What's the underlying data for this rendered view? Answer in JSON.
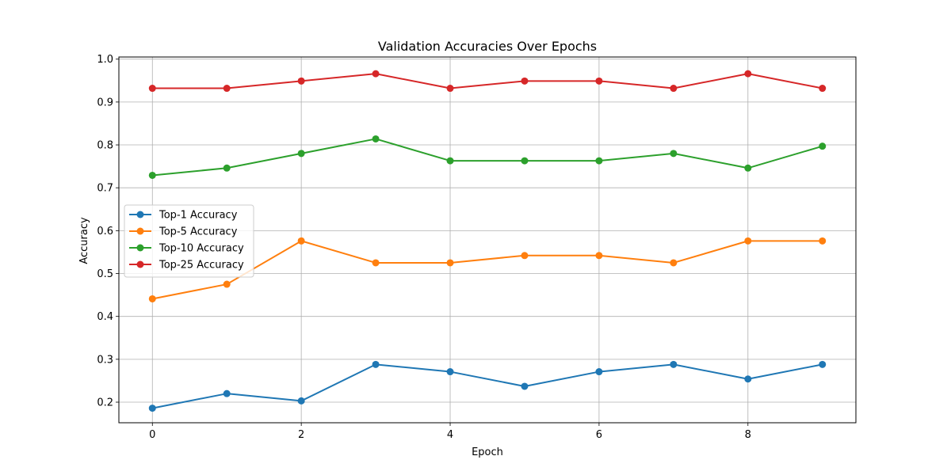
{
  "chart_data": {
    "type": "line",
    "title": "Validation Accuracies Over Epochs",
    "xlabel": "Epoch",
    "ylabel": "Accuracy",
    "x": [
      0,
      1,
      2,
      3,
      4,
      5,
      6,
      7,
      8,
      9
    ],
    "xlim": [
      -0.45,
      9.45
    ],
    "ylim": [
      0.152,
      1.005
    ],
    "xticks": [
      0,
      2,
      4,
      6,
      8
    ],
    "yticks": [
      0.2,
      0.3,
      0.4,
      0.5,
      0.6,
      0.7,
      0.8,
      0.9,
      1.0
    ],
    "xtick_labels": [
      "0",
      "2",
      "4",
      "6",
      "8"
    ],
    "ytick_labels": [
      "0.2",
      "0.3",
      "0.4",
      "0.5",
      "0.6",
      "0.7",
      "0.8",
      "0.9",
      "1.0"
    ],
    "grid": true,
    "legend_position": "center-left",
    "series": [
      {
        "name": "Top-1 Accuracy",
        "color": "#1f77b4",
        "values": [
          0.186,
          0.22,
          0.203,
          0.288,
          0.271,
          0.237,
          0.271,
          0.288,
          0.254,
          0.288
        ]
      },
      {
        "name": "Top-5 Accuracy",
        "color": "#ff7f0e",
        "values": [
          0.441,
          0.475,
          0.576,
          0.525,
          0.525,
          0.542,
          0.542,
          0.525,
          0.576,
          0.576
        ]
      },
      {
        "name": "Top-10 Accuracy",
        "color": "#2ca02c",
        "values": [
          0.729,
          0.746,
          0.78,
          0.814,
          0.763,
          0.763,
          0.763,
          0.78,
          0.746,
          0.797
        ]
      },
      {
        "name": "Top-25 Accuracy",
        "color": "#d62728",
        "values": [
          0.932,
          0.932,
          0.949,
          0.966,
          0.932,
          0.949,
          0.949,
          0.932,
          0.966,
          0.932
        ]
      }
    ]
  }
}
